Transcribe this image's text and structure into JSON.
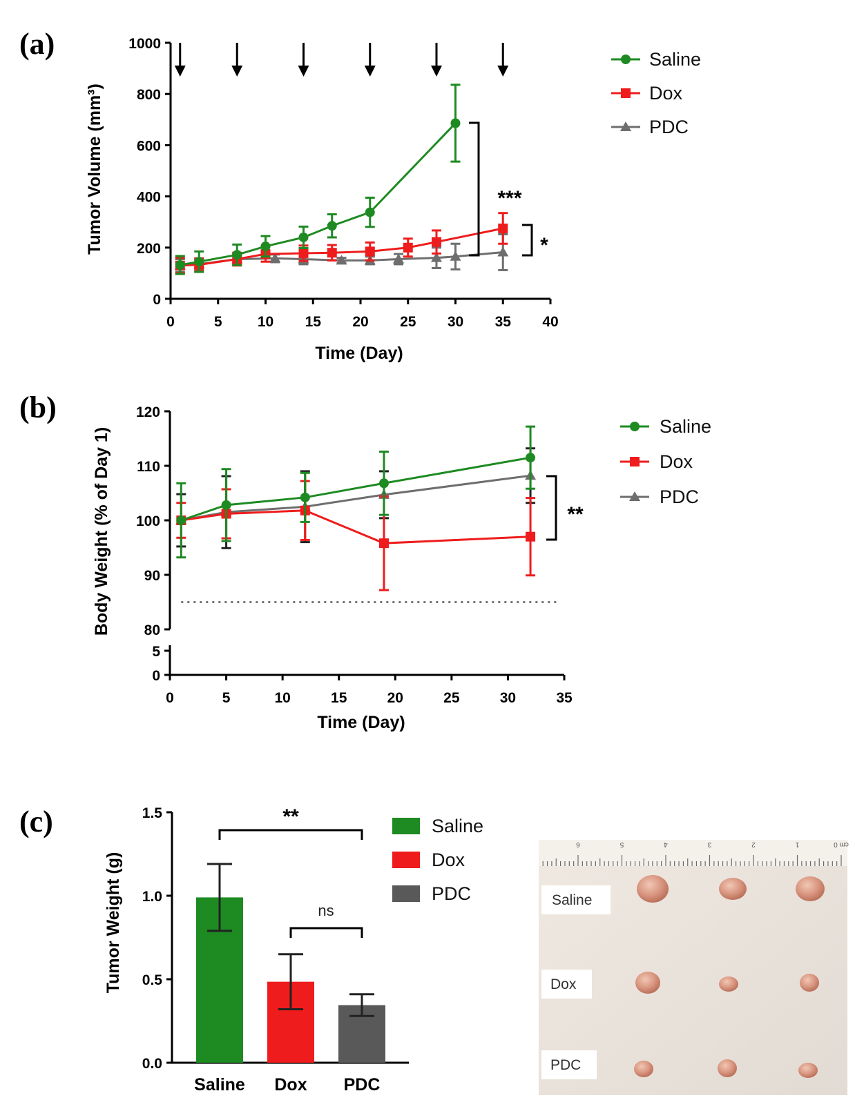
{
  "colors": {
    "saline": "#1e8a22",
    "dox": "#ee1c1c",
    "pdc": "#6e6e6e",
    "photo_bg": "#ece6df"
  },
  "chart_data": [
    {
      "panel": "(a)",
      "type": "line",
      "xlabel": "Time (Day)",
      "ylabel": "Tumor Volume (mm³)",
      "xlim": [
        0,
        40
      ],
      "ylim": [
        0,
        1000
      ],
      "xticks": [
        "0",
        "5",
        "10",
        "15",
        "20",
        "25",
        "30",
        "35",
        "40"
      ],
      "yticks": [
        "0",
        "200",
        "400",
        "600",
        "800",
        "1000"
      ],
      "dosing_days": [
        1,
        7,
        14,
        21,
        28,
        35
      ],
      "series": [
        {
          "name": "Saline",
          "marker": "circle",
          "x": [
            1,
            3,
            7,
            10,
            14,
            17,
            21,
            30
          ],
          "y": [
            132,
            145,
            172,
            205,
            240,
            285,
            338,
            686
          ],
          "err": [
            35,
            40,
            40,
            40,
            42,
            45,
            57,
            150
          ]
        },
        {
          "name": "Dox",
          "marker": "square",
          "x": [
            1,
            3,
            7,
            10,
            14,
            17,
            21,
            25,
            28,
            35
          ],
          "y": [
            130,
            133,
            155,
            175,
            178,
            180,
            185,
            200,
            222,
            275
          ],
          "err": [
            30,
            25,
            25,
            30,
            30,
            30,
            35,
            35,
            45,
            60
          ]
        },
        {
          "name": "PDC",
          "marker": "triangle",
          "x": [
            1,
            3,
            7,
            11,
            14,
            18,
            21,
            24,
            28,
            30,
            35
          ],
          "y": [
            130,
            135,
            155,
            158,
            155,
            150,
            150,
            155,
            160,
            165,
            182
          ],
          "err": [
            25,
            20,
            20,
            15,
            20,
            10,
            15,
            20,
            40,
            50,
            70
          ]
        }
      ],
      "annotations": [
        {
          "label": "***",
          "between": [
            "Saline",
            "PDC"
          ]
        },
        {
          "label": "*",
          "between": [
            "Dox",
            "PDC"
          ]
        }
      ]
    },
    {
      "panel": "(b)",
      "type": "line",
      "xlabel": "Time (Day)",
      "ylabel": "Body Weight (% of Day 1)",
      "xlim": [
        0,
        35
      ],
      "ylim": [
        80,
        120
      ],
      "y_break": [
        5,
        80
      ],
      "xticks": [
        "0",
        "5",
        "10",
        "15",
        "20",
        "25",
        "30",
        "35"
      ],
      "yticks": [
        "80",
        "90",
        "100",
        "110",
        "120"
      ],
      "yticks_lower": [
        "0",
        "5"
      ],
      "threshold": 85,
      "series": [
        {
          "name": "Saline",
          "marker": "circle",
          "x": [
            1,
            5,
            12,
            19,
            32
          ],
          "y": [
            100,
            102.8,
            104.2,
            106.8,
            111.5
          ],
          "err": [
            6.8,
            6.6,
            4.5,
            5.8,
            5.7
          ]
        },
        {
          "name": "Dox",
          "marker": "square",
          "x": [
            1,
            5,
            12,
            19,
            32
          ],
          "y": [
            100,
            101.2,
            101.8,
            95.8,
            97
          ],
          "err": [
            3.2,
            4.5,
            5.4,
            8.6,
            7.1
          ]
        },
        {
          "name": "PDC",
          "marker": "triangle",
          "x": [
            1,
            5,
            12,
            19,
            32
          ],
          "y": [
            100,
            101.5,
            102.5,
            104.7,
            108.2
          ],
          "err": [
            4.8,
            6.6,
            6.5,
            4.3,
            5
          ]
        }
      ],
      "annotations": [
        {
          "label": "**",
          "between": [
            "PDC",
            "Dox"
          ]
        }
      ]
    },
    {
      "panel": "(c)",
      "type": "bar",
      "ylabel": "Tumor Weight (g)",
      "ylim": [
        0,
        1.5
      ],
      "yticks": [
        "0.0",
        "0.5",
        "1.0",
        "1.5"
      ],
      "categories": [
        "Saline",
        "Dox",
        "PDC"
      ],
      "values": [
        0.99,
        0.485,
        0.345
      ],
      "err": [
        0.2,
        0.165,
        0.065
      ],
      "annotations": [
        {
          "label": "**",
          "between": [
            "Saline",
            "PDC"
          ]
        },
        {
          "label": "ns",
          "between": [
            "Dox",
            "PDC"
          ]
        }
      ]
    }
  ],
  "legend_labels": [
    "Saline",
    "Dox",
    "PDC"
  ],
  "photo": {
    "ruler_numbers": [
      "6",
      "5",
      "4",
      "3",
      "2",
      "1",
      "cm 0"
    ],
    "row_labels": [
      "Saline",
      "Dox",
      "PDC"
    ]
  }
}
